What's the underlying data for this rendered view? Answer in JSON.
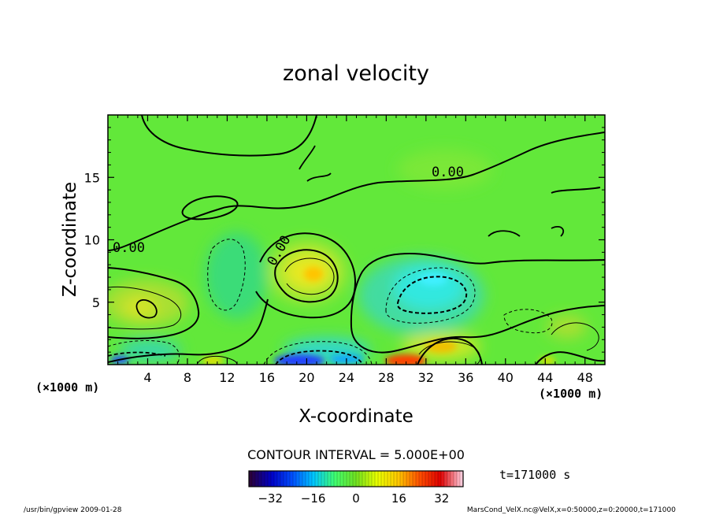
{
  "chart_data": {
    "type": "heatmap",
    "title": "zonal velocity",
    "xlabel": "X-coordinate",
    "ylabel": "Z-coordinate",
    "x_unit_note": "(×1000 m)",
    "y_unit_note": "(×1000 m)",
    "xlim": [
      0,
      50
    ],
    "ylim": [
      0,
      20
    ],
    "x_ticks": [
      "4",
      "8",
      "12",
      "16",
      "20",
      "24",
      "28",
      "32",
      "36",
      "40",
      "44",
      "48"
    ],
    "y_ticks": [
      "5",
      "10",
      "15"
    ],
    "contour_interval_label": "CONTOUR INTERVAL = 5.000E+00",
    "time_label": "t=171000 s",
    "colorbar": {
      "range": [
        -40,
        40
      ],
      "ticks": [
        "−32",
        "−16",
        "0",
        "16",
        "32"
      ],
      "colors": [
        "#2a003c",
        "#0000c8",
        "#0050ff",
        "#00c8ff",
        "#40ff70",
        "#70e020",
        "#e8ff00",
        "#ffc800",
        "#ff5000",
        "#e00000",
        "#ffc8d8"
      ]
    },
    "contour_labels": [
      "0.00",
      "0.00",
      "0.00"
    ],
    "features": [
      {
        "label": "positive core",
        "x": 20,
        "z": 7.5,
        "value": 10
      },
      {
        "label": "negative core",
        "x": 32,
        "z": 6,
        "value": -10
      },
      {
        "label": "positive core",
        "x": 3,
        "z": 4.5,
        "value": 8
      },
      {
        "label": "positive core",
        "x": 33,
        "z": 1.5,
        "value": 15
      },
      {
        "label": "negative core",
        "x": 19,
        "z": 0.3,
        "value": -30
      },
      {
        "label": "positive core",
        "x": 30,
        "z": 0.3,
        "value": 30
      }
    ]
  },
  "footer": {
    "left": "/usr/bin/gpview   2009-01-28",
    "right": "MarsCond_VelX.nc@VelX,x=0:50000,z=0:20000,t=171000"
  }
}
